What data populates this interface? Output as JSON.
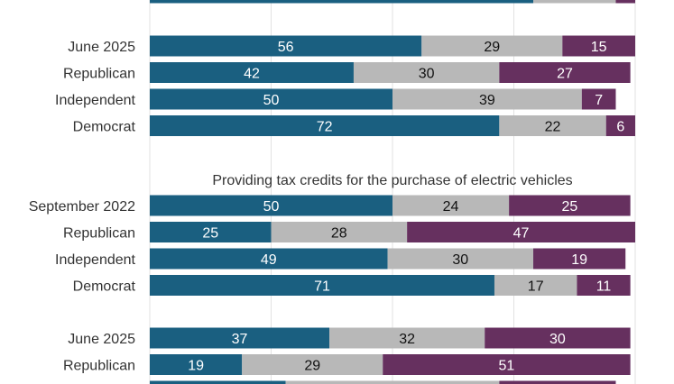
{
  "chart_data": {
    "type": "bar",
    "orientation": "horizontal",
    "stacked": true,
    "xlim": [
      0,
      100
    ],
    "grid": true,
    "colors": [
      "#1a5f80",
      "#b8b8b8",
      "#66305f"
    ],
    "groups": [
      {
        "title": "",
        "rows": [
          {
            "label": "",
            "values": [
              79,
              17,
              4
            ],
            "show_values": false
          }
        ]
      },
      {
        "title": "",
        "rows": [
          {
            "label": "June 2025",
            "values": [
              56,
              29,
              15
            ]
          },
          {
            "label": "Republican",
            "values": [
              42,
              30,
              27
            ]
          },
          {
            "label": "Independent",
            "values": [
              50,
              39,
              7
            ]
          },
          {
            "label": "Democrat",
            "values": [
              72,
              22,
              6
            ]
          }
        ]
      },
      {
        "title": "Providing tax credits for the purchase of electric vehicles",
        "rows": [
          {
            "label": "September 2022",
            "values": [
              50,
              24,
              25
            ]
          },
          {
            "label": "Republican",
            "values": [
              25,
              28,
              47
            ]
          },
          {
            "label": "Independent",
            "values": [
              49,
              30,
              19
            ]
          },
          {
            "label": "Democrat",
            "values": [
              71,
              17,
              11
            ]
          }
        ]
      },
      {
        "title": "",
        "rows": [
          {
            "label": "June 2025",
            "values": [
              37,
              32,
              30
            ]
          },
          {
            "label": "Republican",
            "values": [
              19,
              29,
              51
            ]
          },
          {
            "label": "",
            "values": [
              28,
              44,
              24
            ],
            "show_values": false
          }
        ]
      }
    ]
  }
}
